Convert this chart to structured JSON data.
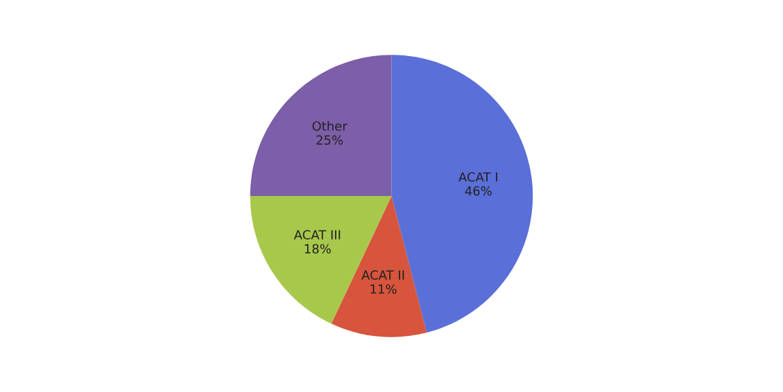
{
  "chart_data": {
    "type": "pie",
    "categories": [
      "ACAT I",
      "ACAT II",
      "ACAT III",
      "Other"
    ],
    "values": [
      46,
      11,
      18,
      25
    ],
    "colors": [
      "#5b6fd8",
      "#d6553c",
      "#a8c84c",
      "#7d5ea8"
    ],
    "value_labels": [
      "46%",
      "11%",
      "18%",
      "25%"
    ]
  }
}
